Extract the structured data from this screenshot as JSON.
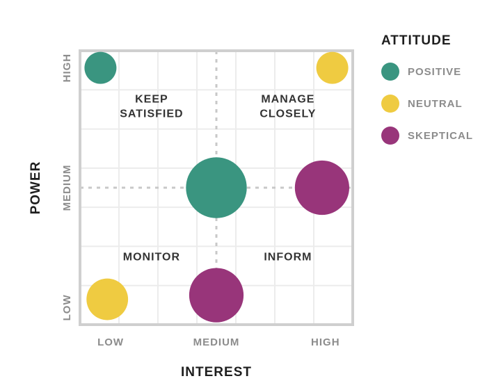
{
  "chart_data": {
    "type": "scatter",
    "xlabel": "INTEREST",
    "ylabel": "POWER",
    "xlim": [
      0,
      4
    ],
    "ylim": [
      0,
      4
    ],
    "x_ticks": [
      {
        "value": 0.45,
        "label": "LOW"
      },
      {
        "value": 2.0,
        "label": "MEDIUM"
      },
      {
        "value": 3.6,
        "label": "HIGH"
      }
    ],
    "y_ticks": [
      {
        "value": 0.25,
        "label": "LOW"
      },
      {
        "value": 2.0,
        "label": "MEDIUM"
      },
      {
        "value": 3.75,
        "label": "HIGH"
      }
    ],
    "divider": {
      "x": 2.0,
      "y": 2.0
    },
    "quadrant_labels": [
      {
        "text": "KEEP\nSATISFIED",
        "x": 1.05,
        "y": 3.2
      },
      {
        "text": "MANAGE\nCLOSELY",
        "x": 3.05,
        "y": 3.2
      },
      {
        "text": "MONITOR",
        "x": 1.05,
        "y": 1.0
      },
      {
        "text": "INFORM",
        "x": 3.05,
        "y": 1.0
      }
    ],
    "legend": {
      "title": "ATTITUDE",
      "position": "right",
      "items": [
        {
          "label": "POSITIVE",
          "color": "#3a9580"
        },
        {
          "label": "NEUTRAL",
          "color": "#efcb41"
        },
        {
          "label": "SKEPTICAL",
          "color": "#98357a"
        }
      ]
    },
    "points": [
      {
        "x": 0.3,
        "y": 3.75,
        "size": 1,
        "attitude": "POSITIVE"
      },
      {
        "x": 3.7,
        "y": 3.75,
        "size": 1,
        "attitude": "NEUTRAL"
      },
      {
        "x": 2.0,
        "y": 2.0,
        "size": 1.9,
        "attitude": "POSITIVE"
      },
      {
        "x": 3.55,
        "y": 2.0,
        "size": 1.7,
        "attitude": "SKEPTICAL"
      },
      {
        "x": 0.4,
        "y": 0.37,
        "size": 1.3,
        "attitude": "NEUTRAL"
      },
      {
        "x": 2.0,
        "y": 0.43,
        "size": 1.7,
        "attitude": "SKEPTICAL"
      }
    ],
    "grid": true
  }
}
